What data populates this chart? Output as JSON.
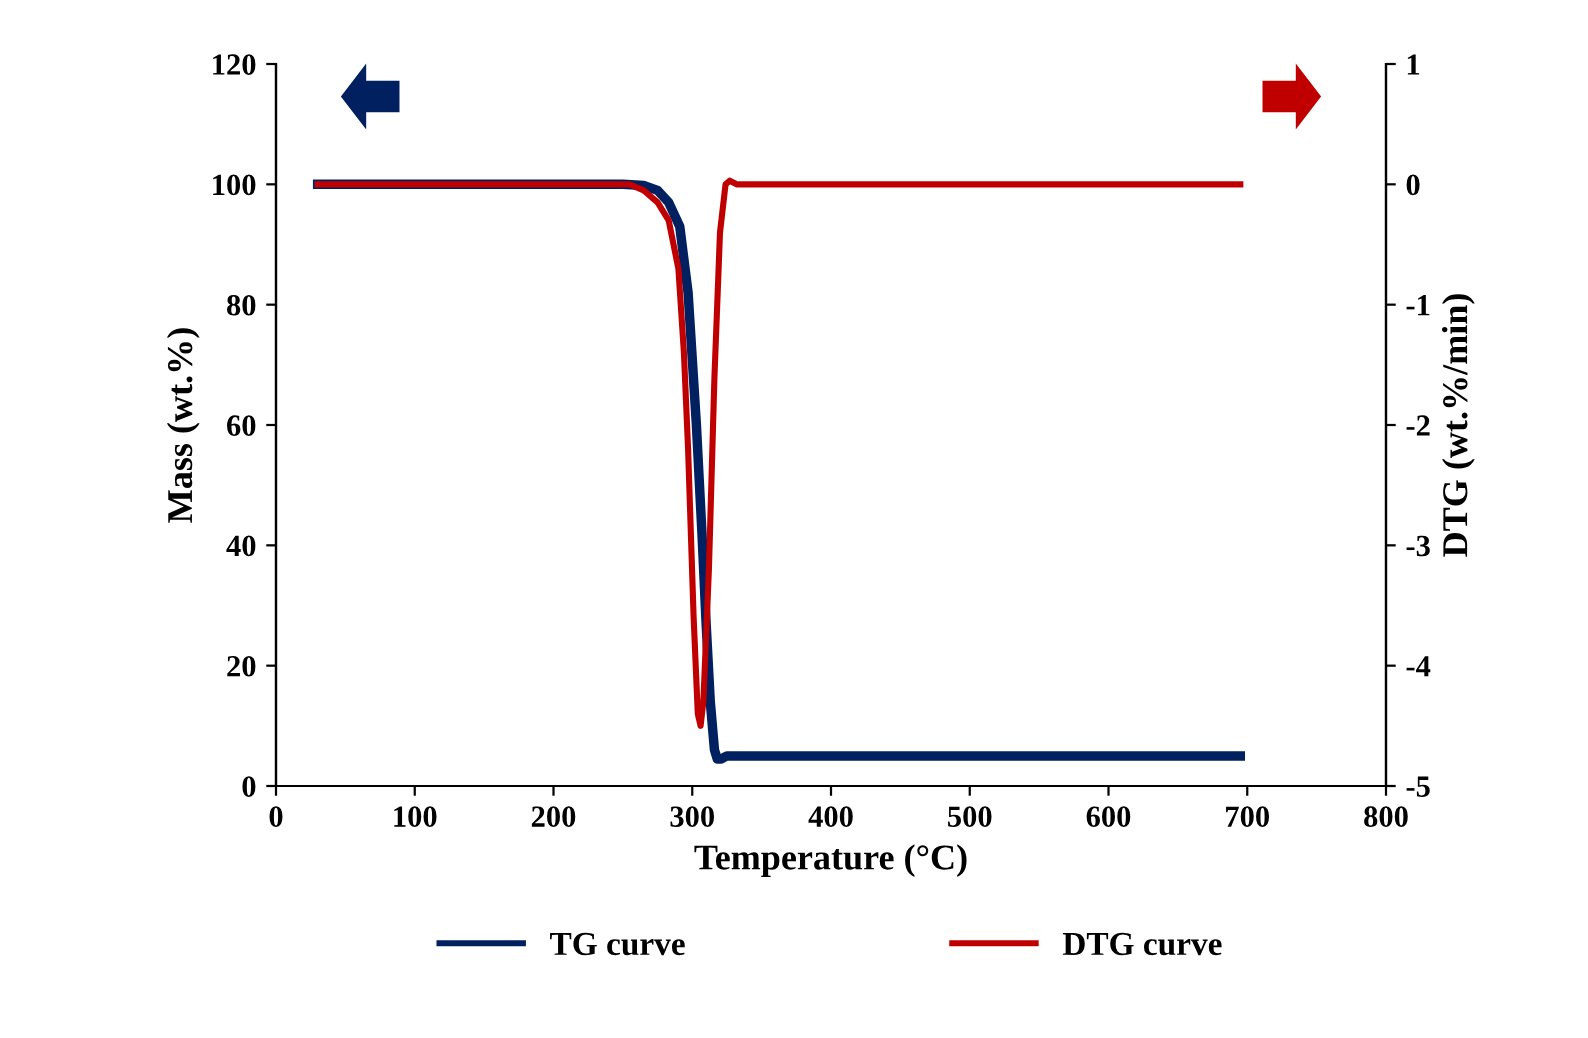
{
  "chart_data": {
    "type": "line",
    "xlabel": "Temperature (°C)",
    "ylabel": "Mass (wt.%)",
    "y2label": "DTG (wt.%/min)",
    "xlim": [
      0,
      800
    ],
    "xticks": [
      0,
      100,
      200,
      300,
      400,
      500,
      600,
      700,
      800
    ],
    "ylim": [
      0,
      120
    ],
    "yticks": [
      0,
      20,
      40,
      60,
      80,
      100,
      120
    ],
    "y2lim": [
      -5,
      1
    ],
    "y2ticks": [
      -5,
      -4,
      -3,
      -2,
      -1,
      0,
      1
    ],
    "grid": false,
    "legend": "bottom",
    "marker": "none",
    "line_style": "solid",
    "series": [
      {
        "name": "TG curve",
        "color": "#002060",
        "x": [
          30,
          250,
          265,
          275,
          283,
          291,
          297,
          303,
          307,
          310,
          313,
          316,
          318,
          321,
          325,
          400,
          695
        ],
        "values": [
          100,
          100,
          99.8,
          99,
          97,
          93,
          82,
          60,
          42,
          27,
          14,
          6,
          4.5,
          4.5,
          5,
          5,
          5
        ]
      },
      {
        "name": "DTG curve",
        "color": "#c00000",
        "axis": "y2",
        "x": [
          30,
          255,
          265,
          275,
          283,
          290,
          294,
          297,
          301,
          304,
          306,
          308,
          312,
          316,
          320,
          324,
          327,
          332,
          695
        ],
        "values": [
          0,
          0,
          -0.05,
          -0.15,
          -0.3,
          -0.7,
          -1.4,
          -2.2,
          -3.6,
          -4.4,
          -4.5,
          -4.3,
          -3.2,
          -1.6,
          -0.4,
          0,
          0.03,
          0,
          0
        ]
      }
    ]
  }
}
